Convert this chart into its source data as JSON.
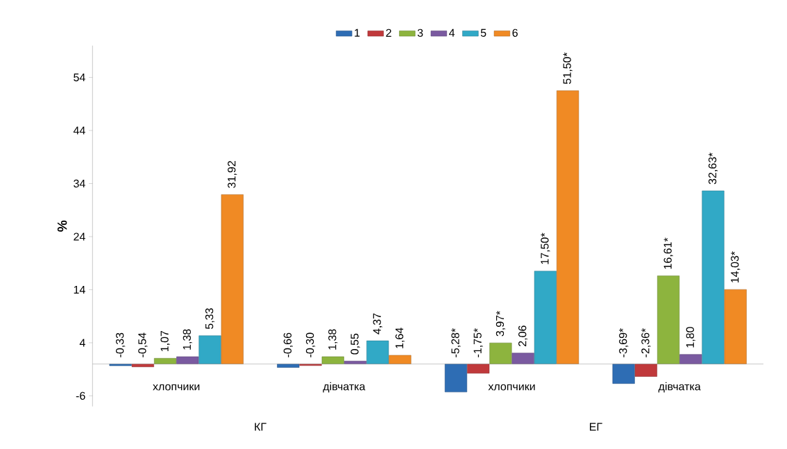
{
  "chart_data": {
    "type": "bar",
    "ylabel": "%",
    "categories": [
      "хлопчики",
      "дівчатка",
      "хлопчики",
      "дівчатка"
    ],
    "series": [
      {
        "name": "1",
        "color": "#2e6db4",
        "values": [
          -0.33,
          -0.66,
          -5.28,
          -3.69
        ],
        "value_labels": [
          "-0,33",
          "-0,66",
          "-5,28*",
          "-3,69*"
        ]
      },
      {
        "name": "2",
        "color": "#c0393b",
        "values": [
          -0.54,
          -0.3,
          -1.75,
          -2.36
        ],
        "value_labels": [
          "-0,54",
          "-0,30",
          "-1,75*",
          "-2,36*"
        ]
      },
      {
        "name": "3",
        "color": "#8db43e",
        "values": [
          1.07,
          1.38,
          3.97,
          16.61
        ],
        "value_labels": [
          "1,07",
          "1,38",
          "3,97*",
          "16,61*"
        ]
      },
      {
        "name": "4",
        "color": "#7a5aa0",
        "values": [
          1.38,
          0.55,
          2.06,
          1.8
        ],
        "value_labels": [
          "1,38",
          "0,55",
          "2,06",
          "1,80"
        ]
      },
      {
        "name": "5",
        "color": "#31a9c6",
        "values": [
          5.33,
          4.37,
          17.5,
          32.63
        ],
        "value_labels": [
          "5,33",
          "4,37",
          "17,50*",
          "32,63*"
        ]
      },
      {
        "name": "6",
        "color": "#f08a24",
        "values": [
          31.92,
          1.64,
          51.5,
          14.03
        ],
        "value_labels": [
          "31,92",
          "1,64",
          "51,50*",
          "14,03*"
        ]
      }
    ],
    "annotations": [
      "КГ",
      "ЕГ"
    ],
    "ylim": [
      -8,
      60
    ],
    "yticks": [
      -6,
      4,
      14,
      24,
      34,
      44,
      54
    ],
    "legend": "top",
    "grid": false
  }
}
